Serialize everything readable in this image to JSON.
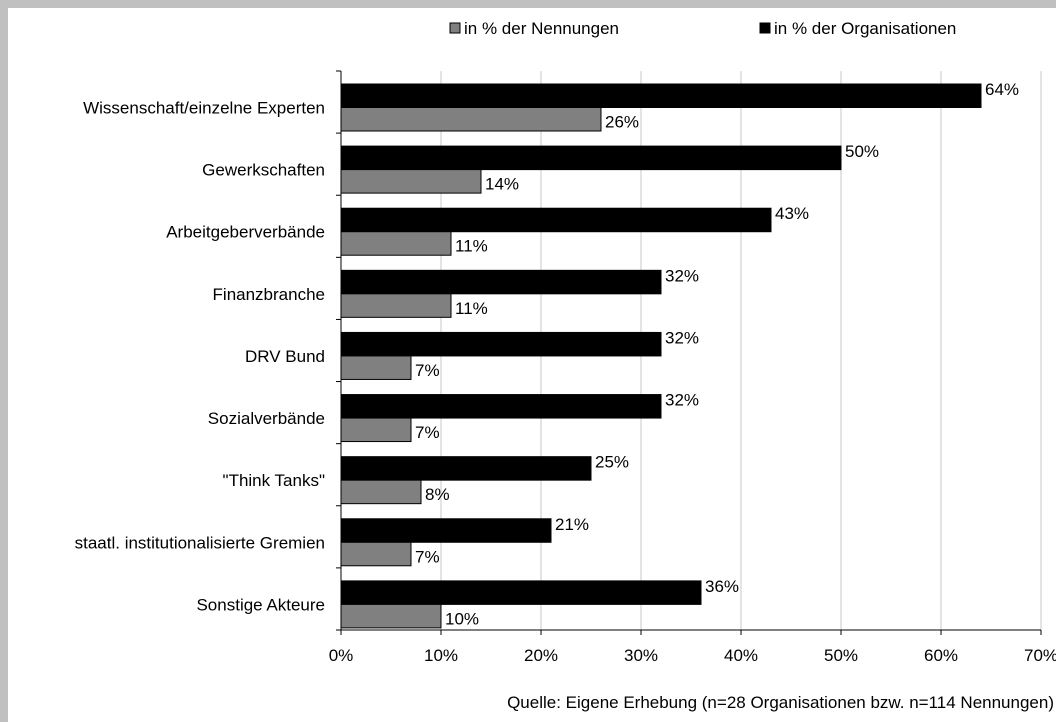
{
  "chart_data": {
    "type": "bar",
    "orientation": "horizontal",
    "categories": [
      "Wissenschaft/einzelne Experten",
      "Gewerkschaften",
      "Arbeitgeberverbände",
      "Finanzbranche",
      "DRV Bund",
      "Sozialverbände",
      "\"Think Tanks\"",
      "staatl. institutionalisierte Gremien",
      "Sonstige Akteure"
    ],
    "series": [
      {
        "name": "in % der Organisationen",
        "color": "#000000",
        "values": [
          64,
          50,
          43,
          32,
          32,
          32,
          25,
          21,
          36
        ],
        "labels": [
          "64%",
          "50%",
          "43%",
          "32%",
          "32%",
          "32%",
          "25%",
          "21%",
          "36%"
        ]
      },
      {
        "name": "in % der Nennungen",
        "color": "#808080",
        "values": [
          26,
          14,
          11,
          11,
          7,
          7,
          8,
          7,
          10
        ],
        "labels": [
          "26%",
          "14%",
          "11%",
          "11%",
          "7%",
          "7%",
          "8%",
          "7%",
          "10%"
        ]
      }
    ],
    "xlim": [
      0,
      70
    ],
    "x_ticks": [
      0,
      10,
      20,
      30,
      40,
      50,
      60,
      70
    ],
    "x_tick_labels": [
      "0%",
      "10%",
      "20%",
      "30%",
      "40%",
      "50%",
      "60%",
      "70%"
    ],
    "grid": "vertical",
    "legend": {
      "placement": "top",
      "items": [
        {
          "label": "in % der Nennungen",
          "color": "#808080"
        },
        {
          "label": "in % der Organisationen",
          "color": "#000000"
        }
      ]
    },
    "source_note": "Quelle: Eigene Erhebung (n=28 Organisationen bzw. n=114 Nennungen)"
  }
}
